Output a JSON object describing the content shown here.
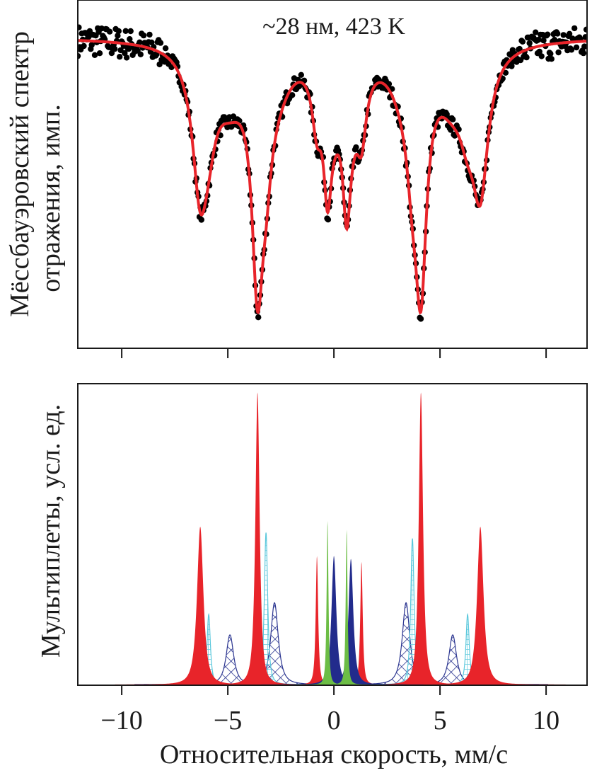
{
  "chart_data": [
    {
      "id": "top",
      "type": "scatter",
      "title": "",
      "annotation": "~28 нм, 423 K",
      "xlabel": "",
      "ylabel_lines": [
        "Мёссбауэровский спектр",
        "отражения, имп."
      ],
      "xlim": [
        -12.07,
        11.93
      ],
      "ylim": [
        0.0,
        1.12
      ],
      "xticks": [
        -10,
        -5,
        0,
        5,
        10
      ],
      "show_xtick_labels": false,
      "grid": false,
      "legend": "none",
      "series": [
        {
          "name": "experiment",
          "kind": "points",
          "color": "#000000",
          "note": "noisy experimental counts following the fit curve"
        },
        {
          "name": "fit",
          "kind": "line",
          "color": "#e8242a",
          "baseline": 1.0,
          "components": [
            {
              "center": -6.3,
              "depth": 0.42,
              "width": 0.45
            },
            {
              "center": -5.9,
              "depth": 0.14,
              "width": 0.45
            },
            {
              "center": -4.9,
              "depth": 0.14,
              "width": 0.9
            },
            {
              "center": -3.6,
              "depth": 0.66,
              "width": 0.32
            },
            {
              "center": -3.2,
              "depth": 0.2,
              "width": 0.32
            },
            {
              "center": -2.8,
              "depth": 0.12,
              "width": 0.9
            },
            {
              "center": -0.8,
              "depth": 0.18,
              "width": 0.28
            },
            {
              "center": -0.3,
              "depth": 0.32,
              "width": 0.22
            },
            {
              "center": 0.0,
              "depth": 0.14,
              "width": 0.5
            },
            {
              "center": 0.6,
              "depth": 0.34,
              "width": 0.22
            },
            {
              "center": 0.8,
              "depth": 0.14,
              "width": 0.5
            },
            {
              "center": 1.3,
              "depth": 0.2,
              "width": 0.28
            },
            {
              "center": 3.4,
              "depth": 0.12,
              "width": 0.9
            },
            {
              "center": 3.7,
              "depth": 0.2,
              "width": 0.32
            },
            {
              "center": 4.1,
              "depth": 0.66,
              "width": 0.32
            },
            {
              "center": 5.6,
              "depth": 0.14,
              "width": 0.9
            },
            {
              "center": 6.3,
              "depth": 0.14,
              "width": 0.45
            },
            {
              "center": 6.9,
              "depth": 0.42,
              "width": 0.45
            }
          ]
        }
      ]
    },
    {
      "id": "bottom",
      "type": "area",
      "title": "",
      "xlabel": "Относительная скорость, мм/с",
      "ylabel": "Мультиплеты, усл. ед.",
      "xlim": [
        -12.07,
        11.93
      ],
      "ylim": [
        0.0,
        1.03
      ],
      "xticks": [
        -10,
        -5,
        0,
        5,
        10
      ],
      "xtick_labels": [
        "−10",
        "−5",
        "0",
        "5",
        "10"
      ],
      "grid": false,
      "legend": "none",
      "series": [
        {
          "name": "sextet-red",
          "style": "solid",
          "color": "#e8242a",
          "peaks": [
            [
              -6.3,
              0.54,
              0.42
            ],
            [
              -3.6,
              1.0,
              0.28
            ],
            [
              -0.8,
              0.44,
              0.16
            ],
            [
              1.3,
              0.42,
              0.16
            ],
            [
              4.1,
              1.0,
              0.28
            ],
            [
              6.9,
              0.54,
              0.42
            ]
          ]
        },
        {
          "name": "sextet-cyan",
          "style": "grid-hatch",
          "color": "#5bc8dc",
          "peaks": [
            [
              -5.9,
              0.24,
              0.22
            ],
            [
              -3.2,
              0.52,
              0.22
            ],
            [
              3.7,
              0.5,
              0.22
            ],
            [
              6.3,
              0.24,
              0.22
            ]
          ]
        },
        {
          "name": "sextet-navy-hatch",
          "style": "cross-hatch",
          "color": "#2b3590",
          "peaks": [
            [
              -4.9,
              0.17,
              0.5
            ],
            [
              -2.8,
              0.28,
              0.5
            ],
            [
              3.4,
              0.28,
              0.5
            ],
            [
              5.6,
              0.17,
              0.5
            ]
          ]
        },
        {
          "name": "doublet-navy",
          "style": "solid",
          "color": "#222b8c",
          "peaks": [
            [
              0.0,
              0.44,
              0.32
            ],
            [
              0.8,
              0.43,
              0.32
            ]
          ]
        },
        {
          "name": "doublet-green",
          "style": "solid",
          "color": "#6cbd45",
          "peaks": [
            [
              -0.3,
              0.56,
              0.12
            ],
            [
              0.6,
              0.53,
              0.12
            ]
          ]
        }
      ]
    }
  ]
}
